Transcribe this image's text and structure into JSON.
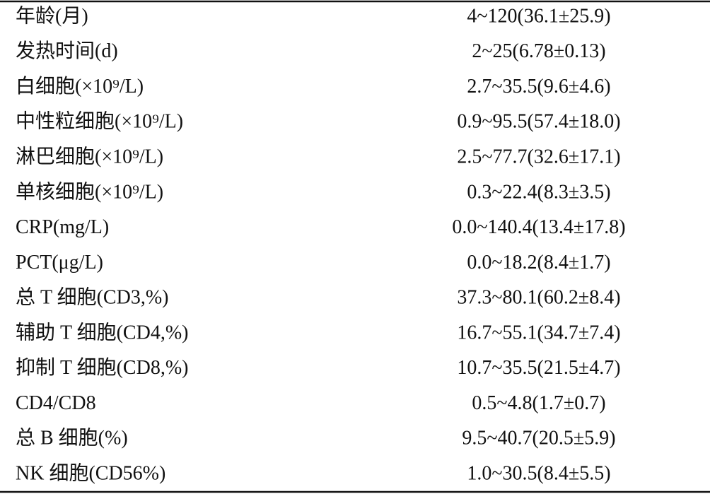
{
  "table": {
    "rows": [
      [
        "年龄(月)",
        "4~120(36.1±25.9)"
      ],
      [
        "发热时间(d)",
        "2~25(6.78±0.13)"
      ],
      [
        "白细胞(×10⁹/L)",
        "2.7~35.5(9.6±4.6)"
      ],
      [
        "中性粒细胞(×10⁹/L)",
        "0.9~95.5(57.4±18.0)"
      ],
      [
        "淋巴细胞(×10⁹/L)",
        "2.5~77.7(32.6±17.1)"
      ],
      [
        "单核细胞(×10⁹/L)",
        "0.3~22.4(8.3±3.5)"
      ],
      [
        "CRP(mg/L)",
        "0.0~140.4(13.4±17.8)"
      ],
      [
        "PCT(μg/L)",
        "0.0~18.2(8.4±1.7)"
      ],
      [
        "总 T 细胞(CD3,%)",
        "37.3~80.1(60.2±8.4)"
      ],
      [
        "辅助 T 细胞(CD4,%)",
        "16.7~55.1(34.7±7.4)"
      ],
      [
        "抑制 T 细胞(CD8,%)",
        "10.7~35.5(21.5±4.7)"
      ],
      [
        "CD4/CD8",
        "0.5~4.8(1.7±0.7)"
      ],
      [
        "总 B 细胞(%)",
        "9.5~40.7(20.5±5.9)"
      ],
      [
        "NK 细胞(CD56%)",
        "1.0~30.5(8.4±5.5)"
      ]
    ]
  }
}
